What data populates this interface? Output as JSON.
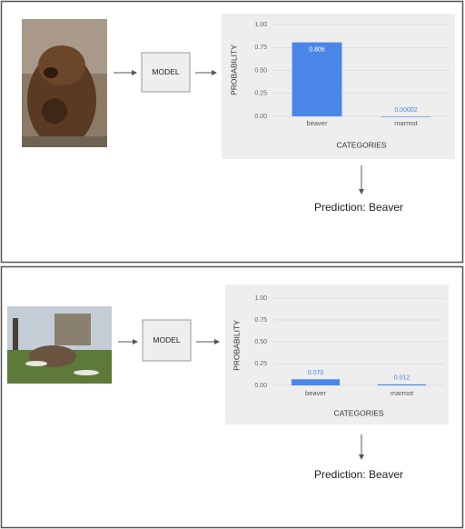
{
  "panels": [
    {
      "model_label": "MODEL",
      "chart": {
        "type": "bar",
        "y_label": "PROBABILITY",
        "x_label": "CATEGORIES",
        "categories": [
          "beaver",
          "marmot"
        ],
        "values": [
          0.806,
          2e-05
        ],
        "value_labels": [
          "0.806",
          "0.00002"
        ],
        "color": "#4a86e8",
        "ylim": [
          0,
          1
        ],
        "yticks": [
          {
            "value": 0,
            "label": "0.00"
          },
          {
            "value": 0.25,
            "label": "0.25"
          },
          {
            "value": 0.5,
            "label": "0.50"
          },
          {
            "value": 0.75,
            "label": "0.75"
          },
          {
            "value": 1,
            "label": "1.00"
          }
        ],
        "grid": true
      },
      "prediction": "Prediction: Beaver"
    },
    {
      "model_label": "MODEL",
      "chart": {
        "type": "bar",
        "y_label": "PROBABILITY",
        "x_label": "CATEGORIES",
        "categories": [
          "beaver",
          "marmot"
        ],
        "values": [
          0.07,
          0.012
        ],
        "value_labels": [
          "0.070",
          "0.012"
        ],
        "color": "#4a86e8",
        "ylim": [
          0,
          1
        ],
        "yticks": [
          {
            "value": 0,
            "label": "0.00"
          },
          {
            "value": 0.25,
            "label": "0.25"
          },
          {
            "value": 0.5,
            "label": "0.50"
          },
          {
            "value": 0.75,
            "label": "0.75"
          },
          {
            "value": 1,
            "label": "1.00"
          }
        ],
        "grid": true
      },
      "prediction": "Prediction: Beaver"
    }
  ]
}
